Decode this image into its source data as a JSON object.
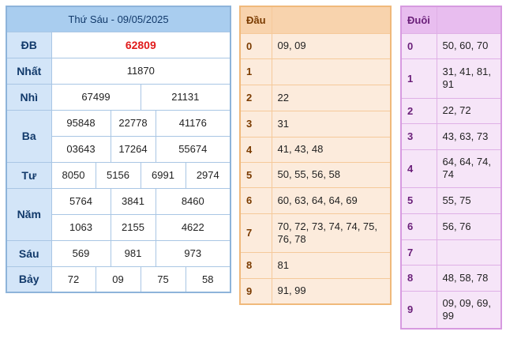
{
  "results": {
    "header": "Thứ Sáu - 09/05/2025",
    "labels": {
      "db": "ĐB",
      "nhat": "Nhất",
      "nhi": "Nhì",
      "ba": "Ba",
      "tu": "Tư",
      "nam": "Năm",
      "sau": "Sáu",
      "bay": "Bảy"
    },
    "db": "62809",
    "nhat": "11870",
    "nhi": [
      "67499",
      "21131"
    ],
    "ba": [
      "95848",
      "22778",
      "41176",
      "03643",
      "17264",
      "55674"
    ],
    "tu": [
      "8050",
      "5156",
      "6991",
      "2974"
    ],
    "nam": [
      "5764",
      "3841",
      "8460",
      "1063",
      "2155",
      "4622"
    ],
    "sau": [
      "569",
      "981",
      "973"
    ],
    "bay": [
      "72",
      "09",
      "75",
      "58"
    ]
  },
  "dau": {
    "title": "Đầu",
    "rows": [
      {
        "k": "0",
        "v": "09, 09"
      },
      {
        "k": "1",
        "v": ""
      },
      {
        "k": "2",
        "v": "22"
      },
      {
        "k": "3",
        "v": "31"
      },
      {
        "k": "4",
        "v": "41, 43, 48"
      },
      {
        "k": "5",
        "v": "50, 55, 56, 58"
      },
      {
        "k": "6",
        "v": "60, 63, 64, 64, 69"
      },
      {
        "k": "7",
        "v": "70, 72, 73, 74, 74, 75, 76, 78"
      },
      {
        "k": "8",
        "v": "81"
      },
      {
        "k": "9",
        "v": "91, 99"
      }
    ]
  },
  "duoi": {
    "title": "Đuôi",
    "rows": [
      {
        "k": "0",
        "v": "50, 60, 70"
      },
      {
        "k": "1",
        "v": "31, 41, 81, 91"
      },
      {
        "k": "2",
        "v": "22, 72"
      },
      {
        "k": "3",
        "v": "43, 63, 73"
      },
      {
        "k": "4",
        "v": "64, 64, 74, 74"
      },
      {
        "k": "5",
        "v": "55, 75"
      },
      {
        "k": "6",
        "v": "56, 76"
      },
      {
        "k": "7",
        "v": ""
      },
      {
        "k": "8",
        "v": "48, 58, 78"
      },
      {
        "k": "9",
        "v": "09, 09, 69, 99"
      }
    ]
  }
}
